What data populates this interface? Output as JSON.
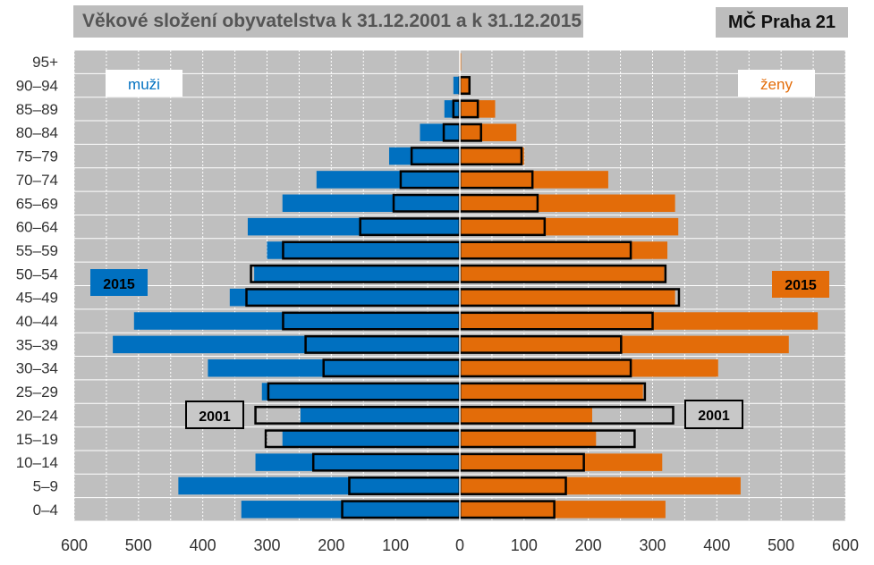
{
  "header": {
    "title": "Věkové složení obyvatelstva k 31.12.2001 a k 31.12.2015",
    "region": "MČ Praha 21"
  },
  "chart_data": {
    "type": "bar",
    "orientation": "horizontal-population-pyramid",
    "categories": [
      "0–4",
      "5–9",
      "10–14",
      "15–19",
      "20–24",
      "25–29",
      "30–34",
      "35–39",
      "40–44",
      "45–49",
      "50–54",
      "55–59",
      "60–64",
      "65–69",
      "70–74",
      "75–79",
      "80–84",
      "85–89",
      "90–94",
      "95+"
    ],
    "x_ticks": [
      "600",
      "500",
      "400",
      "300",
      "200",
      "100",
      "0",
      "100",
      "200",
      "300",
      "400",
      "500",
      "600"
    ],
    "xlim": [
      -600,
      600
    ],
    "grid": true,
    "series": [
      {
        "name": "2015",
        "label": "muži",
        "color": "#0070c0",
        "values": [
          340,
          438,
          318,
          276,
          248,
          308,
          392,
          540,
          507,
          358,
          320,
          300,
          330,
          276,
          223,
          110,
          62,
          24,
          10,
          0
        ]
      },
      {
        "name": "2015",
        "label": "ženy",
        "color": "#e36c09",
        "values": [
          320,
          437,
          315,
          212,
          206,
          285,
          402,
          512,
          557,
          335,
          318,
          323,
          340,
          335,
          231,
          100,
          88,
          55,
          15,
          2
        ]
      },
      {
        "name": "2001",
        "sex": "muži",
        "style": "outline",
        "values": [
          183,
          172,
          228,
          302,
          318,
          298,
          212,
          240,
          275,
          332,
          325,
          275,
          155,
          103,
          92,
          75,
          25,
          10,
          0,
          0
        ]
      },
      {
        "name": "2001",
        "sex": "ženy",
        "style": "outline",
        "values": [
          147,
          165,
          193,
          272,
          332,
          288,
          266,
          251,
          300,
          341,
          320,
          266,
          132,
          121,
          113,
          96,
          33,
          28,
          15,
          0
        ]
      }
    ],
    "labels": {
      "male": "muži",
      "female": "ženy",
      "year_2015_left": "2015",
      "year_2015_right": "2015",
      "year_2001_left": "2001",
      "year_2001_right": "2001"
    },
    "colors": {
      "plot_bg": "#bfbfbf",
      "male": "#0070c0",
      "female": "#e36c09",
      "outline": "#000000"
    }
  }
}
